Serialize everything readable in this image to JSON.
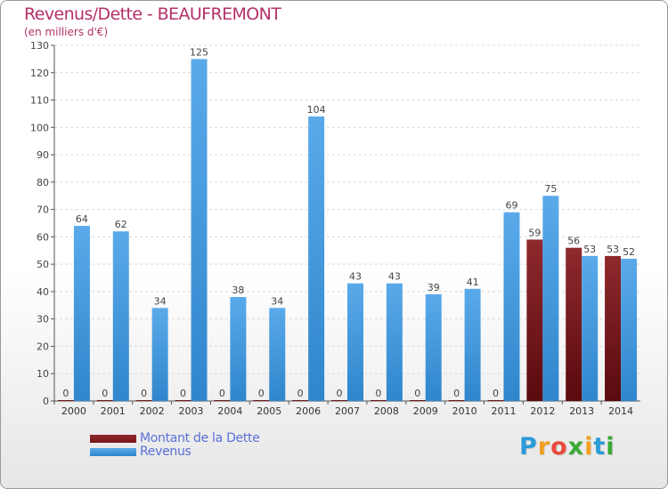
{
  "header": {
    "title": "Revenus/Dette - BEAUFREMONT",
    "subtitle": "(en milliers d'€)"
  },
  "chart_data": {
    "type": "bar",
    "categories": [
      "2000",
      "2001",
      "2002",
      "2003",
      "2004",
      "2005",
      "2006",
      "2007",
      "2008",
      "2009",
      "2010",
      "2011",
      "2012",
      "2013",
      "2014"
    ],
    "series": [
      {
        "name": "Montant de la Dette",
        "color": "#7a1418",
        "values": [
          0,
          0,
          0,
          0,
          0,
          0,
          0,
          0,
          0,
          0,
          0,
          0,
          59,
          56,
          53
        ]
      },
      {
        "name": "Revenus",
        "color": "#4a9ee0",
        "values": [
          64,
          62,
          34,
          125,
          38,
          34,
          104,
          43,
          43,
          39,
          41,
          69,
          75,
          53,
          52
        ]
      }
    ],
    "ylim": [
      0,
      130
    ],
    "yticks": [
      0,
      10,
      20,
      30,
      40,
      50,
      60,
      70,
      80,
      90,
      100,
      110,
      120,
      130
    ],
    "grid": true,
    "legend": "bottom-left"
  },
  "logo": {
    "letters": [
      "P",
      "r",
      "o",
      "x",
      "i",
      "t",
      "i"
    ],
    "colors": [
      "#2a9bd8",
      "#f0a020",
      "#e84c3d",
      "#3aaa35",
      "#f0a020",
      "#2a9bd8",
      "#3aaa35"
    ]
  }
}
